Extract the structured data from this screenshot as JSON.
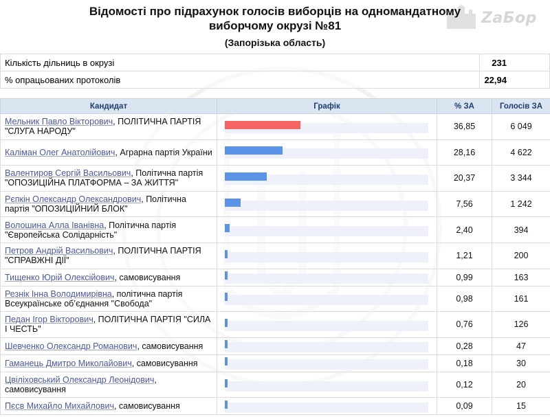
{
  "header": {
    "title": "Відомості про підрахунок голосів виборців на одномандатному виборчому окрузі №81",
    "region": "(Запорізька область)",
    "logo_text": "ZaБор"
  },
  "summary": [
    {
      "label": "Кількість дільниць в окрузі",
      "value": "231"
    },
    {
      "label": "% опрацьованих протоколів",
      "value": "22,94"
    }
  ],
  "columns": {
    "candidate": "Кандидат",
    "graph": "Графік",
    "percent": "% ЗА",
    "votes": "Голосів ЗА"
  },
  "chart_data": {
    "type": "bar",
    "categories": [
      "Мельник Павло Вікторович",
      "Каліман Олег Анатолійович",
      "Валентиров Сергій Васильович",
      "Рєпкін Олександр Олександрович",
      "Волошина Алла Іванівна",
      "Петров Андрій Васильович",
      "Тищенко Юрій Олексійович",
      "Резнік Інна Володимирівна",
      "Педан Ігор Вікторович",
      "Шевченко Олександр Романович",
      "Гаманець Дмитро Миколайович",
      "Цвіліховський Олександр Леонідович",
      "Пєсв Михайло Михайлович"
    ],
    "values": [
      36.85,
      28.16,
      20.37,
      7.56,
      2.4,
      1.21,
      0.99,
      0.98,
      0.76,
      0.28,
      0.18,
      0.12,
      0.09
    ],
    "ylim": [
      0,
      100
    ],
    "colors": {
      "leader": "#f76262",
      "others": "#5b93e8",
      "track": "#eef1fa"
    }
  },
  "rows": [
    {
      "name": "Мельник Павло Вікторович",
      "party": ", ПОЛІТИЧНА ПАРТІЯ \"СЛУГА НАРОДУ\"",
      "percent": "36,85",
      "votes": "6 049",
      "value": 36.85
    },
    {
      "name": "Каліман Олег Анатолійович",
      "party": ", Аграрна партія України",
      "percent": "28,16",
      "votes": "4 622",
      "value": 28.16
    },
    {
      "name": "Валентиров Сергій Васильович",
      "party": ", Політична партія \"ОПОЗИЦІЙНА ПЛАТФОРМА – ЗА ЖИТТЯ\"",
      "percent": "20,37",
      "votes": "3 344",
      "value": 20.37
    },
    {
      "name": "Рєпкін Олександр Олександрович",
      "party": ", Політична партія \"ОПОЗИЦІЙНИЙ БЛОК\"",
      "percent": "7,56",
      "votes": "1 242",
      "value": 7.56
    },
    {
      "name": "Волошина Алла Іванівна",
      "party": ", Політична партія \"Європейська Солідарність\"",
      "percent": "2,40",
      "votes": "394",
      "value": 2.4
    },
    {
      "name": "Петров Андрій Васильович",
      "party": ", ПОЛІТИЧНА ПАРТІЯ \"СПРАВЖНІ ДІЇ\"",
      "percent": "1,21",
      "votes": "200",
      "value": 1.21
    },
    {
      "name": "Тищенко Юрій Олексійович",
      "party": ", самовисування",
      "percent": "0,99",
      "votes": "163",
      "value": 0.99
    },
    {
      "name": "Резнік Інна Володимирівна",
      "party": ", політична партія Всеукраїнське об’єднання \"Свобода\"",
      "percent": "0,98",
      "votes": "161",
      "value": 0.98
    },
    {
      "name": "Педан Ігор Вікторович",
      "party": ", ПОЛІТИЧНА ПАРТІЯ \"СИЛА І ЧЕСТЬ\"",
      "percent": "0,76",
      "votes": "126",
      "value": 0.76
    },
    {
      "name": "Шевченко Олександр Романович",
      "party": ", самовисування",
      "percent": "0,28",
      "votes": "47",
      "value": 0.28
    },
    {
      "name": "Гаманець Дмитро Миколайович",
      "party": ", самовисування",
      "percent": "0,18",
      "votes": "30",
      "value": 0.18
    },
    {
      "name": "Цвіліховський Олександр Леонідович",
      "party": ", самовисування",
      "percent": "0,12",
      "votes": "20",
      "value": 0.12
    },
    {
      "name": "Пєсв Михайло Михайлович",
      "party": ", самовисування",
      "percent": "0,09",
      "votes": "15",
      "value": 0.09
    }
  ]
}
